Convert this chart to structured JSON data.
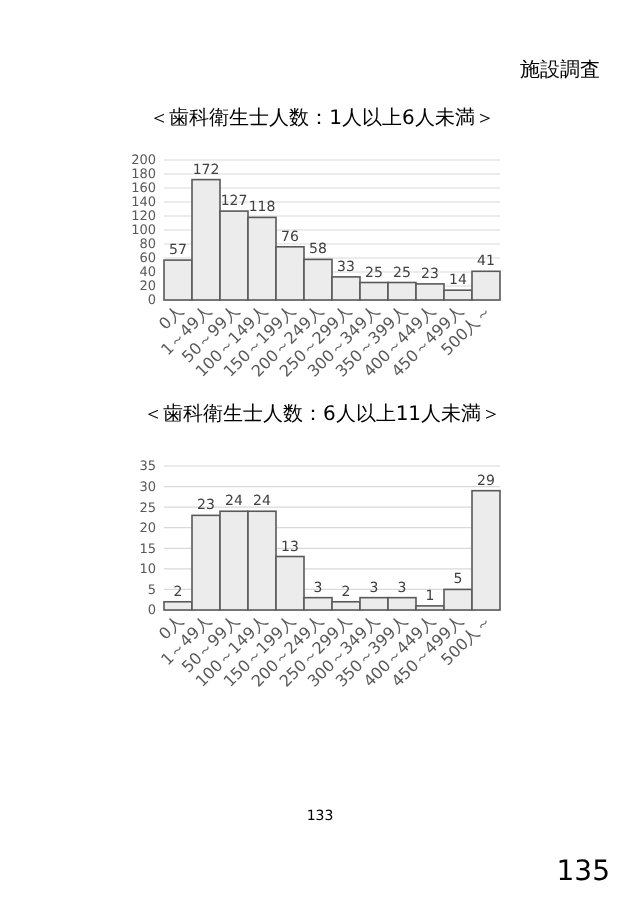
{
  "chart_data": [
    {
      "type": "bar",
      "title": "＜歯科衛生士人数：1人以上6人未満＞",
      "annotations": [
        "施設調査"
      ],
      "categories": [
        "0人",
        "1～49人",
        "50～99人",
        "100～149人",
        "150～199人",
        "200～249人",
        "250～299人",
        "300～349人",
        "350～399人",
        "400～449人",
        "450～499人",
        "500人～"
      ],
      "values": [
        57,
        172,
        127,
        118,
        76,
        58,
        33,
        25,
        25,
        23,
        14,
        41
      ],
      "color": "#ececec",
      "data_labels": true,
      "ylim": [
        0,
        200
      ],
      "yticks": [
        0,
        20,
        40,
        60,
        80,
        100,
        120,
        140,
        160,
        180,
        200
      ],
      "grid": "y"
    },
    {
      "type": "bar",
      "title": "＜歯科衛生士人数：6人以上11人未満＞",
      "annotations": [
        "133",
        "135"
      ],
      "categories": [
        "0人",
        "1～49人",
        "50～99人",
        "100～149人",
        "150～199人",
        "200～249人",
        "250～299人",
        "300～349人",
        "350～399人",
        "400～449人",
        "450～499人",
        "500人～"
      ],
      "values": [
        2,
        23,
        24,
        24,
        13,
        3,
        2,
        3,
        3,
        1,
        5,
        29
      ],
      "color": "#ececec",
      "data_labels": true,
      "ylim": [
        0,
        35
      ],
      "yticks": [
        0,
        5,
        10,
        15,
        20,
        25,
        30,
        35
      ],
      "grid": "y"
    }
  ]
}
